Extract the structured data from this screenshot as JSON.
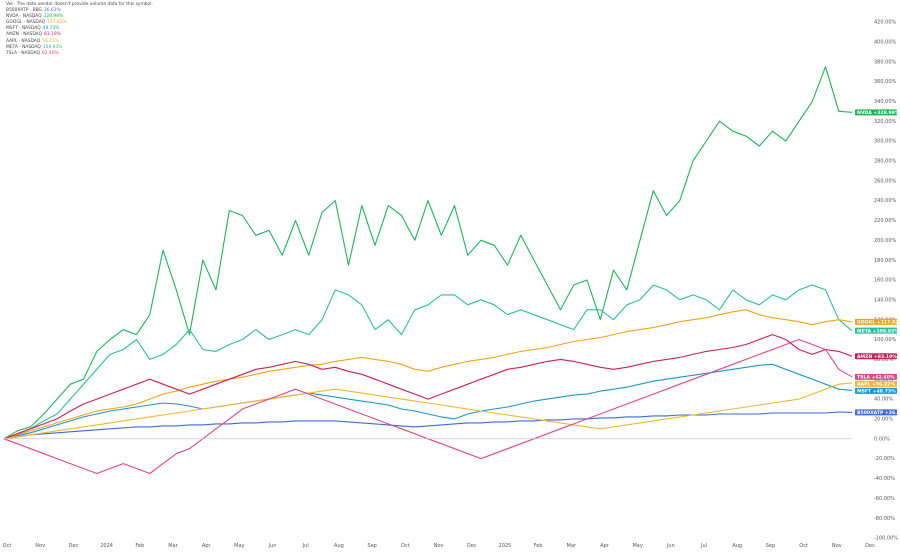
{
  "legend": {
    "note": "Vol · The data vendor doesn't provide volume data for this symbol.",
    "items": [
      {
        "label": "B500XATP · BBG",
        "value": "26.61%",
        "color": "#3d6bd6"
      },
      {
        "label": "NVDA · NASDAQ",
        "value": "328.98%",
        "color": "#1fb35a"
      },
      {
        "label": "GOOGL · NASDAQ",
        "value": "117.82%",
        "color": "#f3a21a"
      },
      {
        "label": "MSFT · NASDAQ",
        "value": "48.73%",
        "color": "#1b96d1"
      },
      {
        "label": "AMZN · NASDAQ",
        "value": "83.19%",
        "color": "#c8205a"
      },
      {
        "label": "AAPL · NASDAQ",
        "value": "56.22%",
        "color": "#f0b830"
      },
      {
        "label": "META · NASDAQ",
        "value": "108.93%",
        "color": "#2ebd9f"
      },
      {
        "label": "TSLA · NASDAQ",
        "value": "62.40%",
        "color": "#e0468a"
      }
    ]
  },
  "chart_data": {
    "type": "line",
    "x_labels": [
      "Oct",
      "Nov",
      "Dec",
      "2024",
      "Feb",
      "Mar",
      "Apr",
      "May",
      "Jun",
      "Jul",
      "Aug",
      "Sep",
      "Oct",
      "Nov",
      "Dec",
      "2025",
      "Feb",
      "Mar",
      "Apr",
      "May",
      "Jun",
      "Jul",
      "Aug",
      "Sep",
      "Oct",
      "Nov",
      "Dec"
    ],
    "y_ticks": [
      "420.00%",
      "400.00%",
      "380.00%",
      "360.00%",
      "340.00%",
      "320.00%",
      "300.00%",
      "280.00%",
      "260.00%",
      "240.00%",
      "220.00%",
      "200.00%",
      "180.00%",
      "160.00%",
      "140.00%",
      "120.00%",
      "100.00%",
      "80.00%",
      "60.00%",
      "40.00%",
      "20.00%",
      "0.00%",
      "-20.00%",
      "-40.00%",
      "-60.00%",
      "-80.00%",
      "-100.00%"
    ],
    "ylim": [
      -100,
      420
    ],
    "axis_side": "right",
    "grid": false,
    "zero_line": true,
    "series": [
      {
        "name": "NVDA",
        "color": "#1fb35a",
        "tag": "NVDA",
        "tag_value": "+328.98%",
        "values": [
          0,
          8,
          12,
          25,
          40,
          55,
          60,
          88,
          100,
          110,
          105,
          125,
          190,
          150,
          105,
          180,
          150,
          230,
          225,
          205,
          210,
          185,
          220,
          185,
          228,
          240,
          175,
          235,
          195,
          235,
          225,
          200,
          240,
          205,
          235,
          185,
          200,
          195,
          175,
          205,
          180,
          155,
          130,
          155,
          160,
          120,
          170,
          150,
          200,
          250,
          225,
          240,
          280,
          300,
          320,
          310,
          305,
          295,
          310,
          300,
          320,
          340,
          375,
          330,
          328.98
        ]
      },
      {
        "name": "META",
        "color": "#2ebd9f",
        "tag": "META",
        "tag_value": "+108.93%",
        "values": [
          0,
          5,
          10,
          18,
          25,
          40,
          55,
          70,
          85,
          90,
          100,
          80,
          85,
          95,
          110,
          90,
          88,
          95,
          100,
          110,
          100,
          105,
          110,
          105,
          120,
          150,
          145,
          135,
          110,
          120,
          105,
          130,
          135,
          145,
          145,
          135,
          140,
          135,
          125,
          130,
          125,
          120,
          115,
          110,
          130,
          130,
          120,
          135,
          140,
          155,
          150,
          140,
          145,
          140,
          130,
          150,
          140,
          135,
          145,
          140,
          150,
          155,
          150,
          120,
          108.93
        ]
      },
      {
        "name": "MSFT",
        "color": "#1b96d1",
        "tag": "MSFT",
        "tag_value": "+48.73%",
        "values": [
          0,
          3,
          6,
          10,
          14,
          18,
          22,
          25,
          28,
          30,
          32,
          34,
          36,
          35,
          33,
          30,
          32,
          34,
          36,
          38,
          40,
          42,
          44,
          46,
          44,
          42,
          40,
          38,
          36,
          34,
          30,
          28,
          25,
          22,
          20,
          25,
          28,
          30,
          32,
          35,
          38,
          40,
          42,
          44,
          45,
          48,
          50,
          52,
          55,
          58,
          60,
          62,
          64,
          66,
          68,
          70,
          72,
          74,
          75,
          70,
          65,
          60,
          55,
          50,
          48.73
        ]
      },
      {
        "name": "GOOGL",
        "color": "#f3a21a",
        "tag": "GOOGL",
        "tag_value": "+117.82%",
        "values": [
          0,
          4,
          8,
          12,
          16,
          20,
          24,
          28,
          30,
          32,
          35,
          40,
          45,
          48,
          52,
          55,
          58,
          60,
          62,
          65,
          68,
          70,
          72,
          74,
          75,
          78,
          80,
          82,
          80,
          78,
          75,
          70,
          68,
          72,
          75,
          78,
          80,
          82,
          85,
          88,
          90,
          92,
          95,
          98,
          100,
          102,
          105,
          108,
          110,
          112,
          115,
          118,
          120,
          122,
          125,
          128,
          130,
          125,
          122,
          120,
          118,
          115,
          118,
          120,
          117.82
        ]
      },
      {
        "name": "B500XATP",
        "color": "#3d6bd6",
        "tag": "B500XATP",
        "tag_value": "+26.61%",
        "values": [
          0,
          2,
          4,
          5,
          6,
          7,
          8,
          9,
          10,
          11,
          12,
          12,
          13,
          13,
          14,
          14,
          15,
          15,
          16,
          16,
          17,
          17,
          18,
          18,
          18,
          18,
          17,
          16,
          15,
          14,
          13,
          12,
          13,
          14,
          15,
          16,
          16,
          17,
          17,
          18,
          18,
          19,
          19,
          20,
          20,
          21,
          21,
          22,
          22,
          23,
          23,
          24,
          24,
          24,
          25,
          25,
          25,
          25,
          26,
          26,
          26,
          26,
          26,
          27,
          26.61
        ]
      },
      {
        "name": "AMZN",
        "color": "#c8205a",
        "tag": "AMZN",
        "tag_value": "+83.19%",
        "values": [
          0,
          5,
          10,
          15,
          20,
          28,
          35,
          40,
          45,
          50,
          55,
          60,
          55,
          50,
          45,
          50,
          55,
          60,
          65,
          70,
          72,
          75,
          78,
          75,
          70,
          72,
          68,
          65,
          60,
          55,
          50,
          45,
          40,
          45,
          50,
          55,
          60,
          65,
          70,
          72,
          75,
          78,
          80,
          78,
          75,
          72,
          70,
          72,
          75,
          78,
          80,
          82,
          85,
          88,
          90,
          92,
          95,
          100,
          105,
          100,
          90,
          85,
          90,
          88,
          83.19
        ]
      },
      {
        "name": "AAPL",
        "color": "#f0b830",
        "tag": "AAPL",
        "tag_value": "+56.22%",
        "values": [
          0,
          2,
          4,
          6,
          8,
          10,
          12,
          14,
          16,
          18,
          20,
          22,
          24,
          26,
          28,
          30,
          32,
          34,
          36,
          38,
          40,
          42,
          44,
          46,
          48,
          50,
          48,
          46,
          44,
          42,
          40,
          38,
          36,
          34,
          32,
          30,
          28,
          26,
          24,
          22,
          20,
          18,
          16,
          14,
          12,
          10,
          12,
          14,
          16,
          18,
          20,
          22,
          24,
          26,
          28,
          30,
          32,
          34,
          36,
          38,
          40,
          45,
          50,
          55,
          56.22
        ]
      },
      {
        "name": "TSLA",
        "color": "#e0468a",
        "tag": "TSLA",
        "tag_value": "+62.40%",
        "values": [
          0,
          -5,
          -10,
          -15,
          -20,
          -25,
          -30,
          -35,
          -30,
          -25,
          -30,
          -35,
          -25,
          -15,
          -10,
          0,
          10,
          20,
          30,
          35,
          40,
          45,
          50,
          45,
          40,
          35,
          30,
          25,
          20,
          15,
          10,
          5,
          0,
          -5,
          -10,
          -15,
          -20,
          -15,
          -10,
          -5,
          0,
          5,
          10,
          15,
          20,
          25,
          30,
          35,
          40,
          45,
          50,
          55,
          60,
          65,
          70,
          75,
          80,
          85,
          90,
          95,
          100,
          95,
          90,
          70,
          62.4
        ]
      }
    ]
  }
}
